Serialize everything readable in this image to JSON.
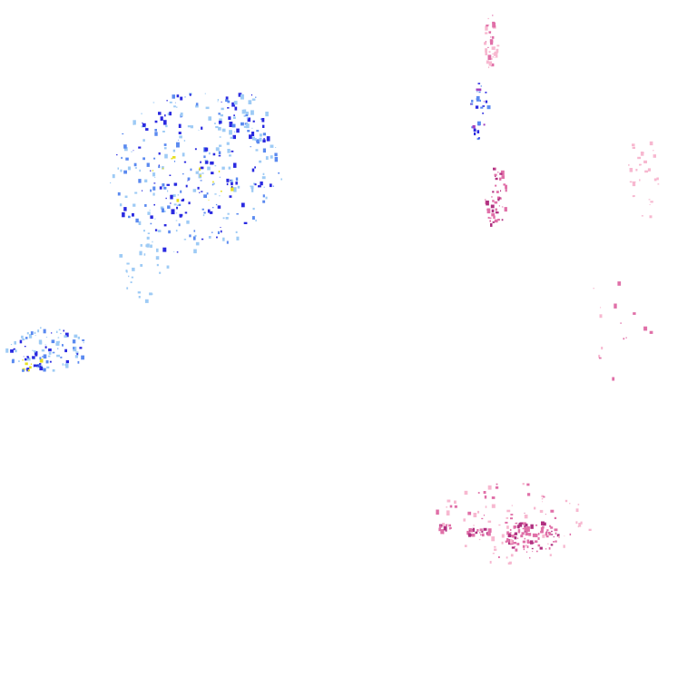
{
  "layer": {
    "type": "radar-precipitation-overlay",
    "palette": {
      "rain_light": "#9ecbf5",
      "rain_moderate": "#5b8af0",
      "rain_heavy": "#2a2ae0",
      "rain_intense": "#e8e020",
      "snow_light": "#f7b8d0",
      "snow_moderate": "#e070a8",
      "snow_heavy": "#b03080",
      "mixed": "#a040c0"
    }
  }
}
